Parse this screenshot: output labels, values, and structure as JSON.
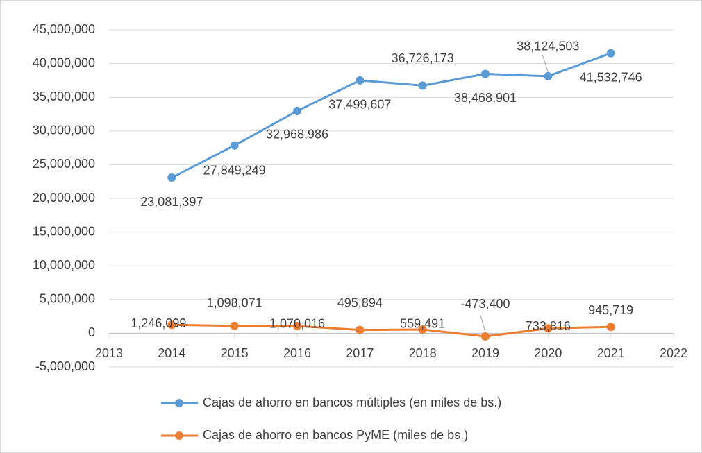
{
  "chart_data": {
    "type": "line",
    "x": [
      2014,
      2015,
      2016,
      2017,
      2018,
      2019,
      2020,
      2021
    ],
    "series": [
      {
        "name": "Cajas de ahorro en bancos múltiples (en miles de bs.)",
        "color": "#5b9bd5",
        "values": [
          23081397,
          27849249,
          32968986,
          37499607,
          36726173,
          38468901,
          38124503,
          41532746
        ],
        "value_labels": [
          "23,081,397",
          "27,849,249",
          "32,968,986",
          "37,499,607",
          "36,726,173",
          "38,468,901",
          "38,124,503",
          "41,532,746"
        ]
      },
      {
        "name": "Cajas de ahorro en bancos PyME (miles de bs.)",
        "color": "#ed7d31",
        "values": [
          1246099,
          1098071,
          1070016,
          495894,
          559491,
          -473400,
          733816,
          945719
        ],
        "value_labels": [
          "1,246,099",
          "1,098,071",
          "1,070,016",
          "495,894",
          "559,491",
          "-473,400",
          "733,816",
          "945,719"
        ]
      }
    ],
    "xlim": [
      2013,
      2022
    ],
    "xticks": [
      2013,
      2014,
      2015,
      2016,
      2017,
      2018,
      2019,
      2020,
      2021,
      2022
    ],
    "ylim": [
      -5000000,
      45000000
    ],
    "yticks": [
      {
        "value": -5000000,
        "label": "-5,000,000"
      },
      0,
      {
        "value": 5000000,
        "label": "5,000,000"
      },
      {
        "value": 10000000,
        "label": "10,000,000"
      },
      {
        "value": 15000000,
        "label": "15,000,000"
      },
      {
        "value": 20000000,
        "label": "20,000,000"
      },
      {
        "value": 25000000,
        "label": "25,000,000"
      },
      {
        "value": 30000000,
        "label": "30,000,000"
      },
      {
        "value": 35000000,
        "label": "35,000,000"
      },
      {
        "value": 40000000,
        "label": "40,000,000"
      },
      {
        "value": 45000000,
        "label": "45,000,000"
      }
    ],
    "grid": true,
    "legend": "bottom"
  }
}
